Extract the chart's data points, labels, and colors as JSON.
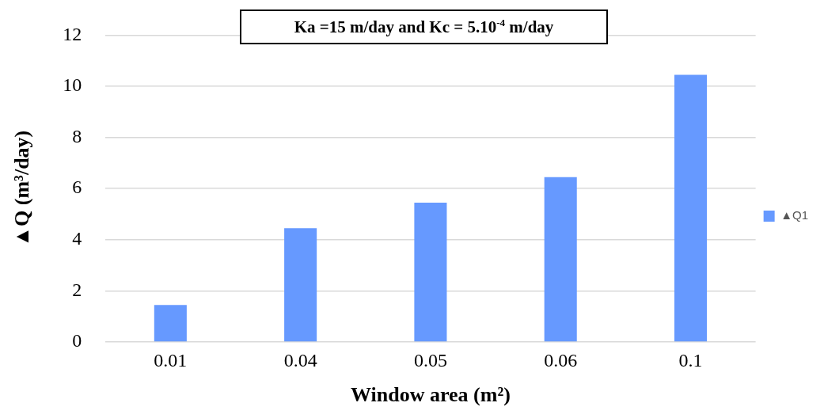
{
  "chart_data": {
    "type": "bar",
    "xlabel": "Window area (m²)",
    "ylabel": "▲Q (m³/day)",
    "annotations": [
      "Ka =15 m/day and Kc = 5.10$^{-4}$ m/day"
    ],
    "categories": [
      "0.01",
      "0.04",
      "0.05",
      "0.06",
      "0.1"
    ],
    "series": [
      {
        "name": "▲Q1",
        "color": "#6699ff",
        "values": [
          1.45,
          4.45,
          5.45,
          6.45,
          10.45
        ]
      }
    ],
    "ylim": [
      0,
      12
    ],
    "yticks": [
      0,
      2,
      4,
      6,
      8,
      10,
      12
    ],
    "grid": "y",
    "legend": "right"
  }
}
